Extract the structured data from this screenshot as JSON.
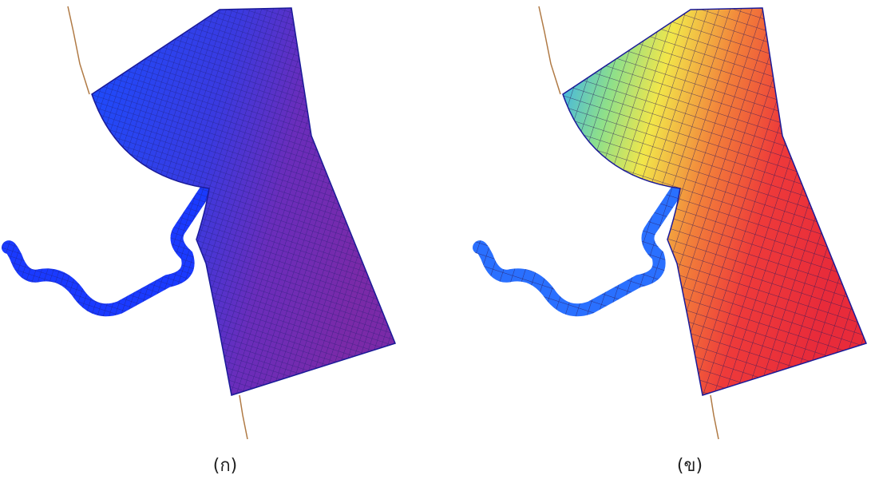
{
  "figures": [
    {
      "caption": "(ก)"
    },
    {
      "caption": "(ข)"
    }
  ]
}
